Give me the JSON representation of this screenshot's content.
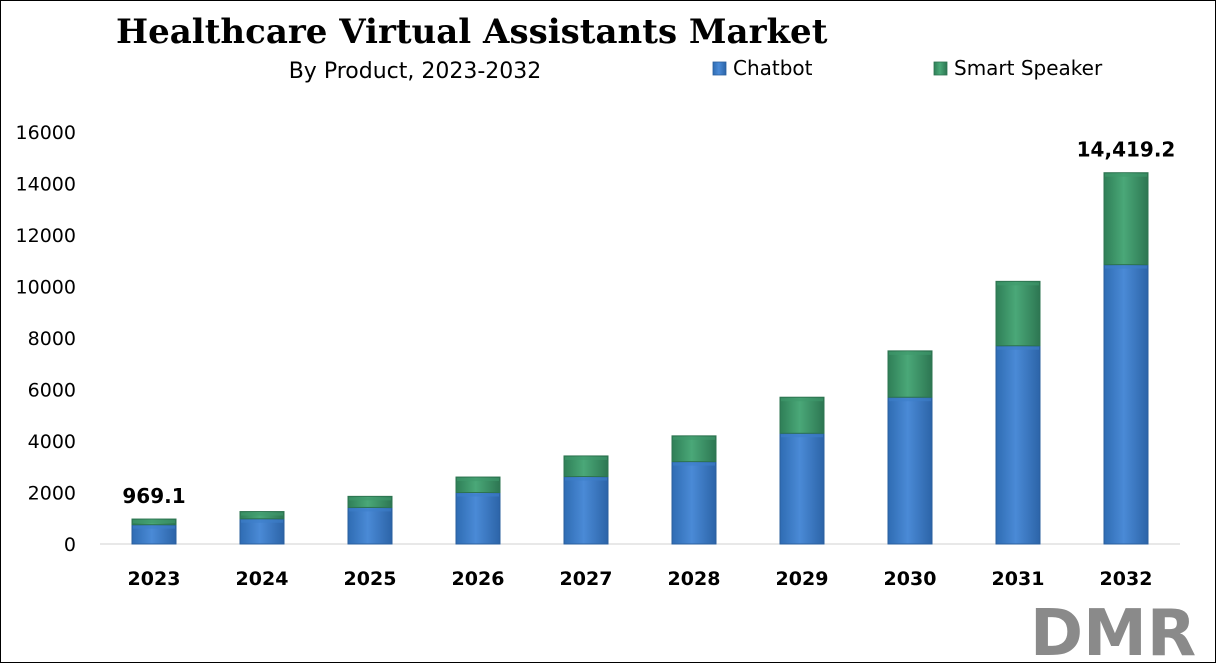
{
  "colors": {
    "chatbot": "#3d7fc9",
    "chatbot_dark": "#2a5f9e",
    "smart_speaker": "#3f9a6c",
    "smart_speaker_dark": "#2d7450",
    "logo_grey": "#8a8a8a",
    "logo_red": "#c0272d"
  },
  "logo": {
    "text": "DMR"
  },
  "chart_data": {
    "type": "bar",
    "stacked": true,
    "title": "Healthcare Virtual Assistants Market",
    "subtitle": "By Product, 2023-2032",
    "xlabel": "",
    "ylabel": "",
    "ylim": [
      0,
      16000
    ],
    "yticks": [
      "0",
      "2000",
      "4000",
      "6000",
      "8000",
      "10000",
      "12000",
      "14000",
      "16000"
    ],
    "ytick_values": [
      0,
      2000,
      4000,
      6000,
      8000,
      10000,
      12000,
      14000,
      16000
    ],
    "categories": [
      "2023",
      "2024",
      "2025",
      "2026",
      "2027",
      "2028",
      "2029",
      "2030",
      "2031",
      "2032"
    ],
    "series": [
      {
        "name": "Chatbot",
        "values": [
          750,
          980,
          1420,
          2000,
          2620,
          3200,
          4300,
          5700,
          7700,
          10850
        ]
      },
      {
        "name": "Smart Speaker",
        "values": [
          219.1,
          280,
          430,
          600,
          800,
          1000,
          1400,
          1800,
          2500,
          3569.2
        ]
      }
    ],
    "data_labels": [
      {
        "category": "2023",
        "text": "969.1"
      },
      {
        "category": "2032",
        "text": "14,419.2"
      }
    ],
    "legend": {
      "position": "top-right"
    },
    "grid": false
  }
}
